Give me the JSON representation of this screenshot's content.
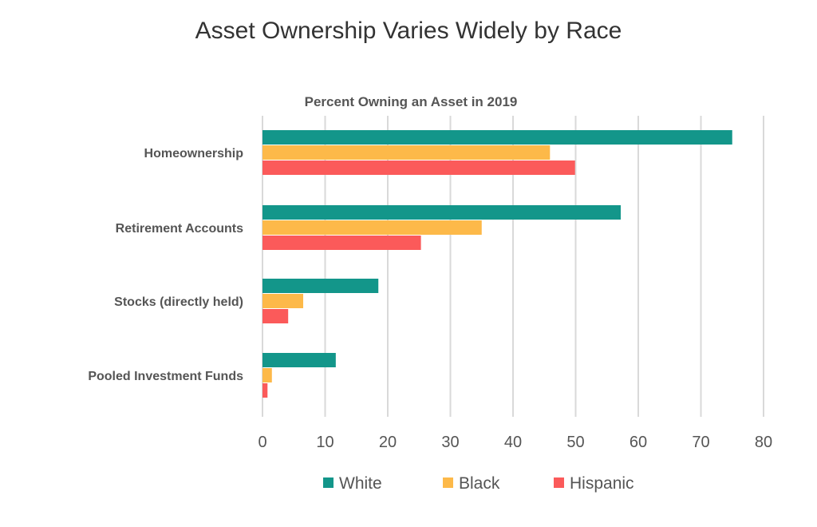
{
  "title": "Asset Ownership Varies Widely by Race",
  "chart_data": {
    "type": "bar",
    "orientation": "horizontal",
    "title": "Percent Owning an Asset in 2019",
    "categories": [
      "Homeownership",
      "Retirement Accounts",
      "Stocks (directly held)",
      "Pooled Investment Funds"
    ],
    "series": [
      {
        "name": "White",
        "color": "#13968a",
        "values": [
          75,
          57.2,
          18.5,
          11.7
        ]
      },
      {
        "name": "Black",
        "color": "#fdb949",
        "values": [
          45.9,
          35,
          6.5,
          1.5
        ]
      },
      {
        "name": "Hispanic",
        "color": "#fb5a5a",
        "values": [
          49.9,
          25.3,
          4.1,
          0.8
        ]
      }
    ],
    "xlim": [
      0,
      80
    ],
    "xticks": [
      "0",
      "10",
      "20",
      "30",
      "40",
      "50",
      "60",
      "70",
      "80"
    ],
    "grid": true,
    "legend": "bottom"
  }
}
